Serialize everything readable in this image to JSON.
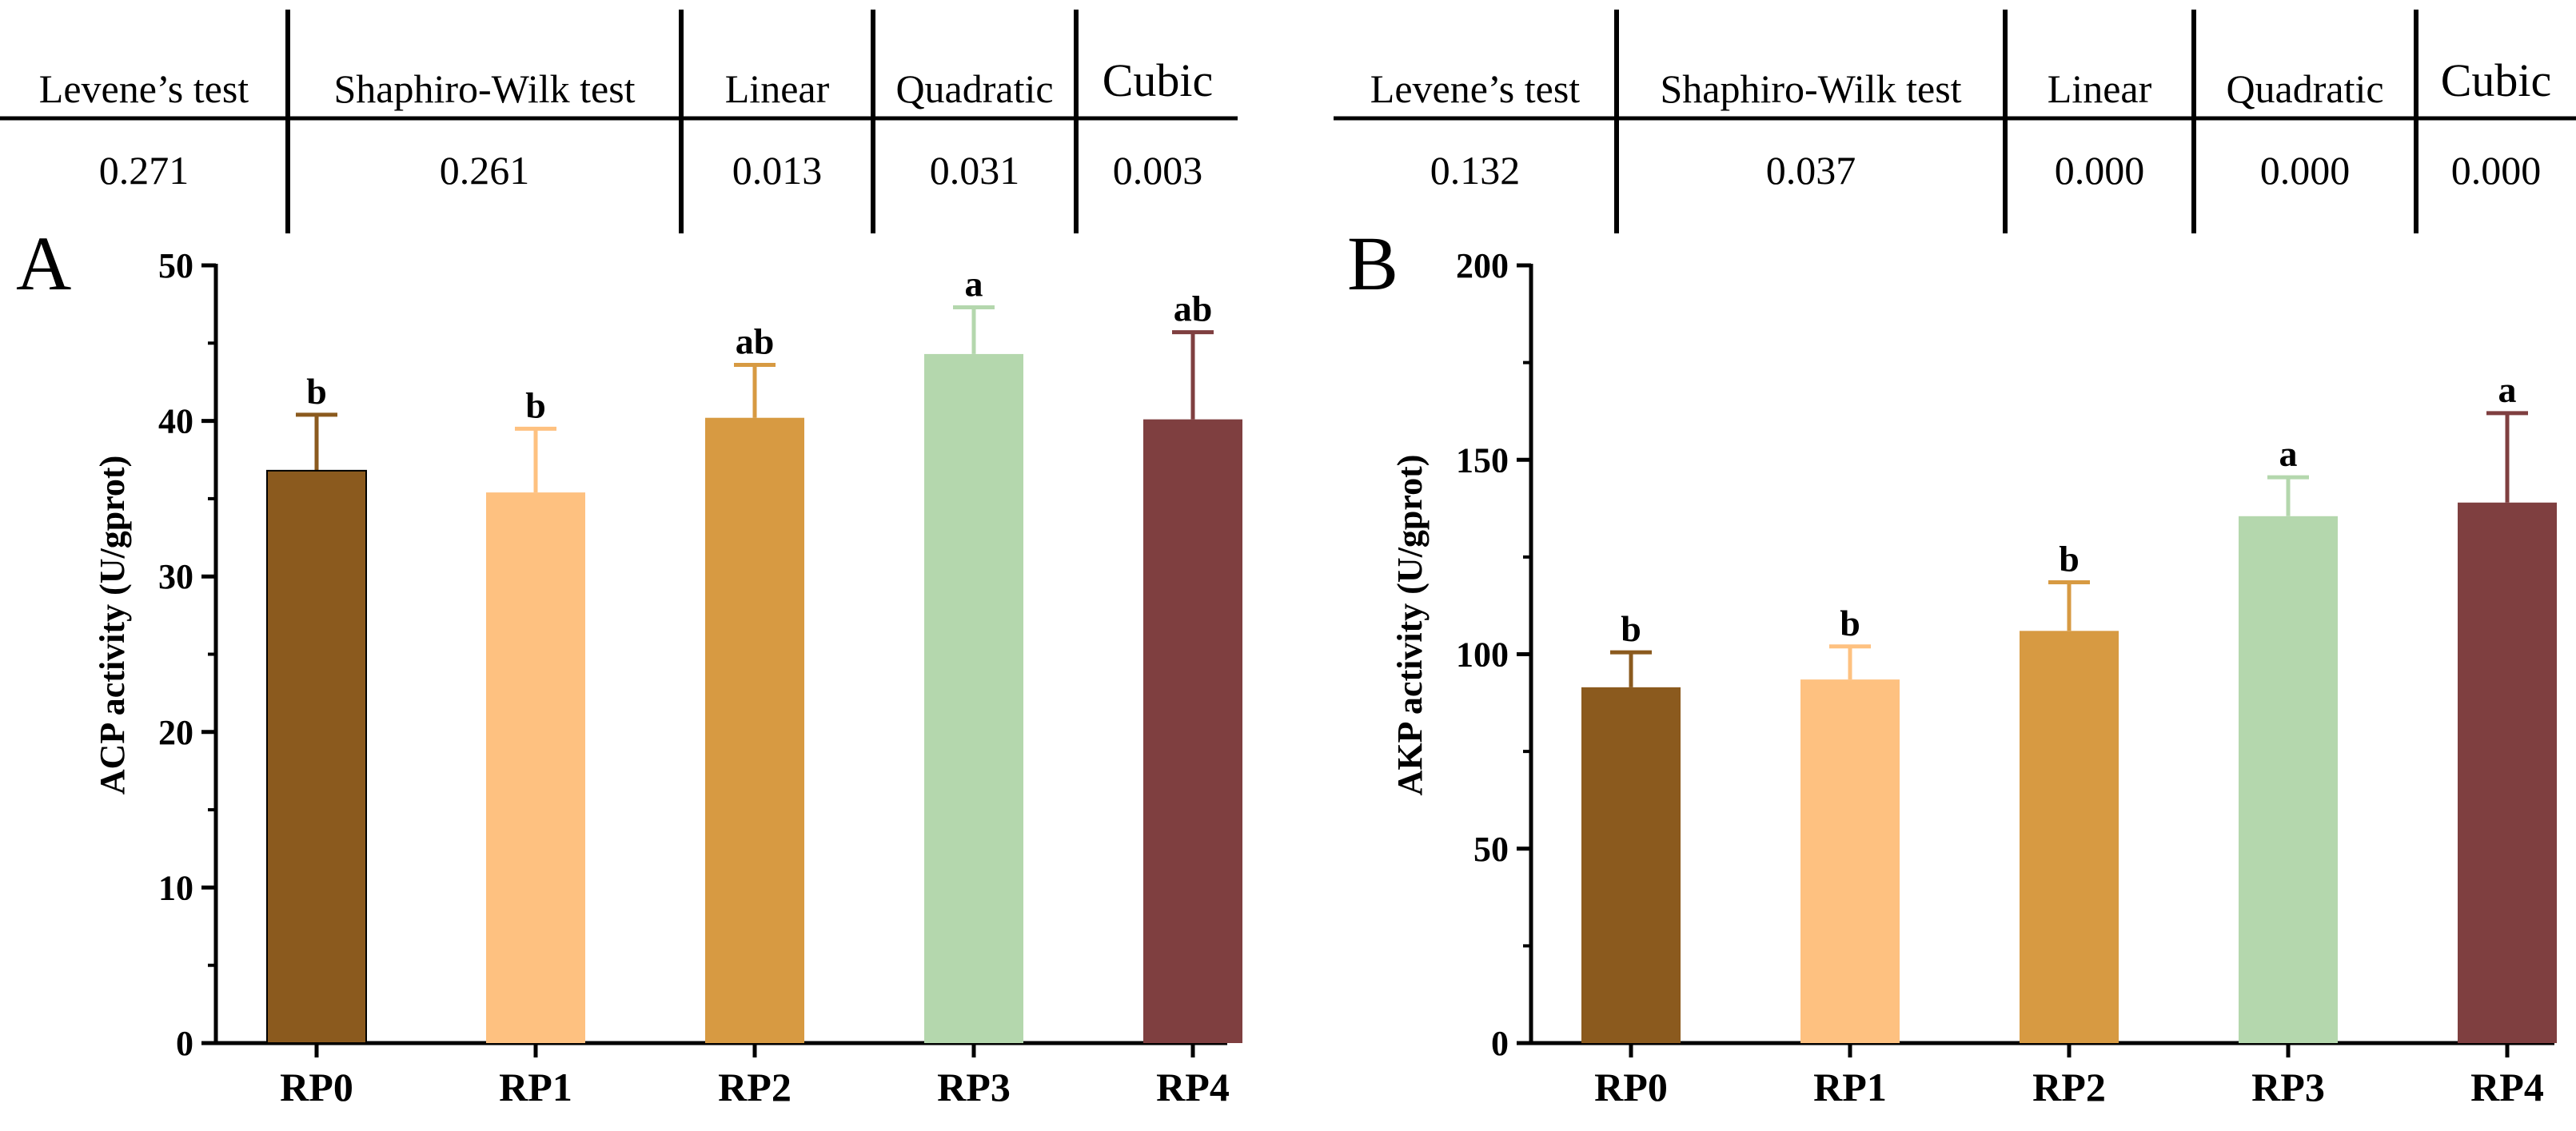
{
  "stats_tables": [
    {
      "headers": [
        "Levene’s test",
        "Shaphiro-Wilk test",
        "Linear",
        "Quadratic",
        "Cubic"
      ],
      "values": [
        "0.271",
        "0.261",
        "0.013",
        "0.031",
        "0.003"
      ]
    },
    {
      "headers": [
        "Levene’s test",
        "Shaphiro-Wilk test",
        "Linear",
        "Quadratic",
        "Cubic"
      ],
      "values": [
        "0.132",
        "0.037",
        "0.000",
        "0.000",
        "0.000"
      ]
    }
  ],
  "colors": {
    "RP0": "#8b5a1e",
    "RP1": "#fec180",
    "RP2": "#d79a42",
    "RP3": "#b4d7ad",
    "RP4": "#7f3f40"
  },
  "chart_data": [
    {
      "type": "bar",
      "panel_label": "A",
      "categories": [
        "RP0",
        "RP1",
        "RP2",
        "RP3",
        "RP4"
      ],
      "values": [
        36.8,
        35.4,
        40.2,
        44.3,
        40.1
      ],
      "errors": [
        3.6,
        4.1,
        3.4,
        3.0,
        5.6
      ],
      "letters": [
        "b",
        "b",
        "ab",
        "a",
        "ab"
      ],
      "ylabel": "ACP activity (U/gprot)",
      "xlabel": "",
      "ylim": [
        0,
        50
      ],
      "yticks": [
        0,
        10,
        20,
        30,
        40,
        50
      ]
    },
    {
      "type": "bar",
      "panel_label": "B",
      "categories": [
        "RP0",
        "RP1",
        "RP2",
        "RP3",
        "RP4"
      ],
      "values": [
        91.5,
        93.5,
        106.0,
        135.5,
        139.0
      ],
      "errors": [
        9.0,
        8.5,
        12.5,
        10.0,
        23.0
      ],
      "letters": [
        "b",
        "b",
        "b",
        "a",
        "a"
      ],
      "ylabel": "AKP activity (U/gprot)",
      "xlabel": "",
      "ylim": [
        0,
        200
      ],
      "yticks": [
        0,
        50,
        100,
        150,
        200
      ]
    }
  ]
}
